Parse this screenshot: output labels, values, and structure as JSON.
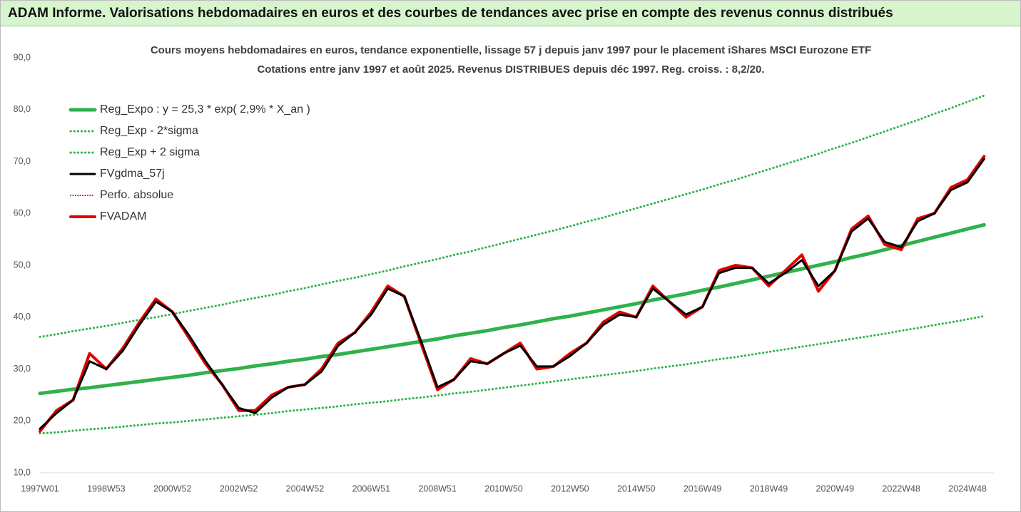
{
  "chart_data": {
    "type": "line",
    "title": "ADAM Informe. Valorisations hebdomadaires en euros et des courbes de tendances avec prise en compte des revenus connus distribués",
    "subtitle": [
      "Cours moyens hebdomadaires en euros, tendance exponentielle, lissage 57 j depuis janv 1997 pour le placement iShares MSCI Eurozone ETF",
      "Cotations entre janv 1997 et août 2025. Revenus DISTRIBUES depuis déc 1997. Reg. croiss. : 8,2/20."
    ],
    "categories": [
      "1997W01",
      null,
      null,
      null,
      "1998W53",
      null,
      null,
      null,
      "2000W52",
      null,
      null,
      null,
      "2002W52",
      null,
      null,
      null,
      "2004W52",
      null,
      null,
      null,
      "2006W51",
      null,
      null,
      null,
      "2008W51",
      null,
      null,
      null,
      "2010W50",
      null,
      null,
      null,
      "2012W50",
      null,
      null,
      null,
      "2014W50",
      null,
      null,
      null,
      "2016W49",
      null,
      null,
      null,
      "2018W49",
      null,
      null,
      null,
      "2020W49",
      null,
      null,
      null,
      "2022W48",
      null,
      null,
      null,
      "2024W48",
      null
    ],
    "ylim": [
      10,
      90
    ],
    "yticks": [
      {
        "value": 10,
        "label": "10,0"
      },
      {
        "value": 20,
        "label": "20,0"
      },
      {
        "value": 30,
        "label": "30,0"
      },
      {
        "value": 40,
        "label": "40,0"
      },
      {
        "value": 50,
        "label": "50,0"
      },
      {
        "value": 60,
        "label": "60,0"
      },
      {
        "value": 70,
        "label": "70,0"
      },
      {
        "value": 80,
        "label": "80,0"
      },
      {
        "value": 90,
        "label": "90,0"
      }
    ],
    "grid": false,
    "legend": "top-left",
    "series": [
      {
        "name": "Reg_Expo : y = 25,3 * exp( 2,9% *  X_an )",
        "color": "#2fb24c",
        "dash": "solid",
        "values": [
          25.3,
          25.7,
          26.1,
          26.4,
          26.8,
          27.2,
          27.6,
          28.0,
          28.4,
          28.8,
          29.3,
          29.7,
          30.1,
          30.6,
          31.0,
          31.5,
          31.9,
          32.4,
          32.8,
          33.3,
          33.8,
          34.3,
          34.8,
          35.3,
          35.8,
          36.4,
          36.9,
          37.4,
          38.0,
          38.5,
          39.1,
          39.7,
          40.2,
          40.8,
          41.4,
          42.0,
          42.6,
          43.3,
          43.9,
          44.5,
          45.2,
          45.8,
          46.5,
          47.2,
          47.9,
          48.6,
          49.3,
          50.0,
          50.7,
          51.5,
          52.2,
          53.0,
          53.8,
          54.6,
          55.4,
          56.2,
          57.0,
          57.8
        ]
      },
      {
        "name": "Reg_Exp - 2*sigma",
        "color": "#2fb24c",
        "dash": "dotted",
        "values": [
          17.6,
          17.8,
          18.1,
          18.4,
          18.6,
          18.9,
          19.2,
          19.5,
          19.7,
          20.0,
          20.3,
          20.6,
          20.9,
          21.2,
          21.5,
          21.9,
          22.2,
          22.5,
          22.8,
          23.2,
          23.5,
          23.8,
          24.2,
          24.5,
          24.9,
          25.3,
          25.6,
          26.0,
          26.4,
          26.8,
          27.2,
          27.6,
          28.0,
          28.4,
          28.8,
          29.2,
          29.6,
          30.1,
          30.5,
          30.9,
          31.4,
          31.9,
          32.3,
          32.8,
          33.3,
          33.8,
          34.3,
          34.8,
          35.3,
          35.8,
          36.3,
          36.8,
          37.4,
          37.9,
          38.5,
          39.0,
          39.6,
          40.2
        ]
      },
      {
        "name": "Reg_Exp + 2 sigma",
        "color": "#2fb24c",
        "dash": "dotted",
        "values": [
          36.2,
          36.7,
          37.3,
          37.8,
          38.3,
          38.9,
          39.5,
          40.0,
          40.6,
          41.2,
          41.8,
          42.4,
          43.1,
          43.7,
          44.3,
          45.0,
          45.6,
          46.3,
          47.0,
          47.6,
          48.3,
          49.0,
          49.8,
          50.5,
          51.2,
          52.0,
          52.7,
          53.5,
          54.3,
          55.1,
          55.9,
          56.7,
          57.5,
          58.4,
          59.2,
          60.1,
          61.0,
          61.9,
          62.8,
          63.7,
          64.6,
          65.6,
          66.5,
          67.5,
          68.5,
          69.5,
          70.5,
          71.5,
          72.6,
          73.6,
          74.7,
          75.8,
          76.9,
          78.0,
          79.2,
          80.3,
          81.5,
          82.7
        ]
      },
      {
        "name": "FVgdma_57j",
        "color": "#000000",
        "dash": "solid",
        "values": [
          18.5,
          21.5,
          24,
          31.5,
          30,
          33.5,
          38.5,
          43,
          41,
          36.5,
          31.5,
          27,
          22.5,
          21.5,
          24.5,
          26.5,
          27,
          29.5,
          34.5,
          37,
          40.5,
          45.5,
          44,
          35.5,
          26.5,
          28,
          31.5,
          31,
          33,
          34.5,
          30.5,
          30.5,
          32.5,
          35,
          38.5,
          40.5,
          40,
          45.5,
          43,
          40.5,
          42,
          48.5,
          49.5,
          49.5,
          46.5,
          48.5,
          51,
          46,
          49,
          56.5,
          59,
          54.5,
          53.5,
          58.5,
          60,
          64.5,
          66,
          70.5
        ]
      },
      {
        "name": "Perfo. absolue",
        "color": "#e00000",
        "dash": "dotted",
        "values": [
          18,
          22,
          24,
          33,
          30,
          34,
          39,
          43.5,
          41,
          36,
          31,
          27,
          22,
          22,
          25,
          26.5,
          27,
          30,
          35,
          37,
          41,
          46,
          44,
          35,
          26,
          28,
          32,
          31,
          33,
          35,
          30,
          30.5,
          33,
          35,
          39,
          41,
          40,
          46,
          43,
          40,
          42,
          49,
          50,
          49.5,
          46,
          49,
          52,
          45,
          49,
          57,
          59.5,
          54,
          53,
          59,
          60,
          65,
          66.5,
          71
        ]
      },
      {
        "name": "FVADAM",
        "color": "#e00000",
        "dash": "solid",
        "values": [
          18,
          22,
          24,
          33,
          30,
          34,
          39,
          43.5,
          41,
          36,
          31,
          27,
          22,
          22,
          25,
          26.5,
          27,
          30,
          35,
          37,
          41,
          46,
          44,
          35,
          26,
          28,
          32,
          31,
          33,
          35,
          30,
          30.5,
          33,
          35,
          39,
          41,
          40,
          46,
          43,
          40,
          42,
          49,
          50,
          49.5,
          46,
          49,
          52,
          45,
          49,
          57,
          59.5,
          54,
          53,
          59,
          60,
          65,
          66.5,
          71
        ]
      }
    ]
  }
}
